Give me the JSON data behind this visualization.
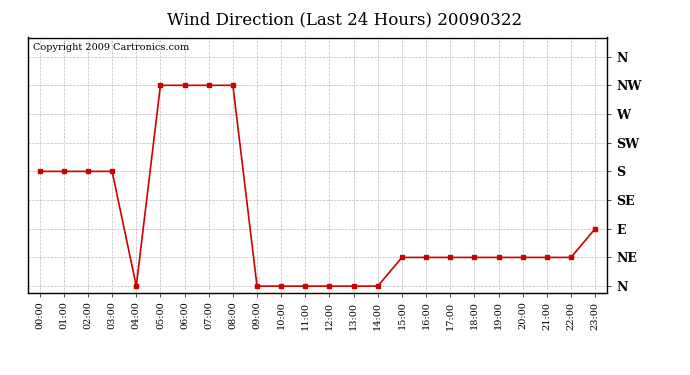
{
  "title": "Wind Direction (Last 24 Hours) 20090322",
  "copyright": "Copyright 2009 Cartronics.com",
  "hours": [
    0,
    1,
    2,
    3,
    4,
    5,
    6,
    7,
    8,
    9,
    10,
    11,
    12,
    13,
    14,
    15,
    16,
    17,
    18,
    19,
    20,
    21,
    22,
    23
  ],
  "wind_values": [
    180,
    180,
    180,
    180,
    0,
    315,
    315,
    315,
    315,
    0,
    0,
    0,
    0,
    0,
    0,
    45,
    45,
    45,
    45,
    45,
    45,
    45,
    45,
    90
  ],
  "yticks": [
    360,
    315,
    270,
    225,
    180,
    135,
    90,
    45,
    0
  ],
  "ylabels": [
    "N",
    "NW",
    "W",
    "SW",
    "S",
    "SE",
    "E",
    "NE",
    "N"
  ],
  "line_color": "#cc0000",
  "bg_color": "#ffffff",
  "plot_bg": "#ffffff",
  "grid_color": "#bbbbbb",
  "title_fontsize": 12,
  "copyright_fontsize": 7
}
